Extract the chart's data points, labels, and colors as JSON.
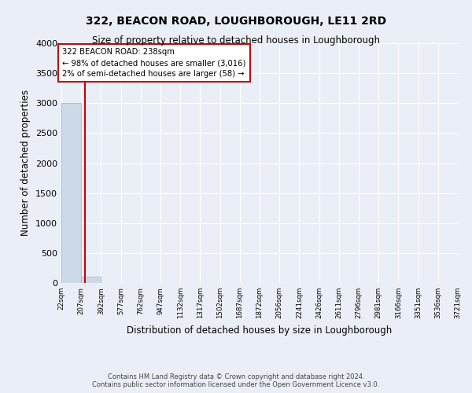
{
  "title": "322, BEACON ROAD, LOUGHBOROUGH, LE11 2RD",
  "subtitle": "Size of property relative to detached houses in Loughborough",
  "xlabel": "Distribution of detached houses by size in Loughborough",
  "ylabel": "Number of detached properties",
  "num_bins": 20,
  "bar_heights": [
    3000,
    100,
    0,
    0,
    0,
    0,
    0,
    0,
    0,
    0,
    0,
    0,
    0,
    0,
    0,
    0,
    0,
    0,
    0,
    0
  ],
  "bar_color": "#ccd9e8",
  "bar_edgecolor": "#aabbcc",
  "highlight_bin": 1,
  "highlight_color": "#cc0000",
  "annotation_title": "322 BEACON ROAD: 238sqm",
  "annotation_line1": "← 98% of detached houses are smaller (3,016)",
  "annotation_line2": "2% of semi-detached houses are larger (58) →",
  "annotation_box_color": "#ffffff",
  "annotation_box_edgecolor": "#cc0000",
  "ylim": [
    0,
    4000
  ],
  "yticks": [
    0,
    500,
    1000,
    1500,
    2000,
    2500,
    3000,
    3500,
    4000
  ],
  "footer_line1": "Contains HM Land Registry data © Crown copyright and database right 2024.",
  "footer_line2": "Contains public sector information licensed under the Open Government Licence v3.0.",
  "background_color": "#eaeff7",
  "plot_bg_color": "#eaeff7",
  "grid_color": "#ffffff",
  "tick_labels": [
    "22sqm",
    "207sqm",
    "392sqm",
    "577sqm",
    "762sqm",
    "947sqm",
    "1132sqm",
    "1317sqm",
    "1502sqm",
    "1687sqm",
    "1872sqm",
    "2056sqm",
    "2241sqm",
    "2426sqm",
    "2611sqm",
    "2796sqm",
    "2981sqm",
    "3166sqm",
    "3351sqm",
    "3536sqm",
    "3721sqm"
  ]
}
